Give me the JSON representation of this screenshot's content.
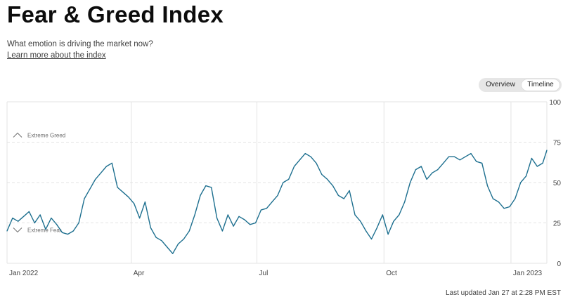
{
  "header": {
    "title": "Fear & Greed Index",
    "subtitle": "What emotion is driving the market now?",
    "learn_more": "Learn more about the index"
  },
  "view_toggle": {
    "options": [
      "Overview",
      "Timeline"
    ],
    "selected": "Timeline"
  },
  "footer": {
    "last_updated": "Last updated Jan 27 at 2:28 PM EST"
  },
  "colors": {
    "line": "#1d6f8f",
    "grid": "#e3e3e3",
    "axis_text": "#444444"
  },
  "chart_data": {
    "type": "line",
    "title": "",
    "xlabel": "",
    "ylabel": "",
    "ylim": [
      0,
      100
    ],
    "yticks": [
      0,
      25,
      50,
      75,
      100
    ],
    "x_tick_labels": [
      "Jan 2022",
      "Apr",
      "Jul",
      "Oct",
      "Jan 2023"
    ],
    "bands": [
      {
        "label": "Extreme Greed",
        "value": 75,
        "icon": "chevron-up-icon"
      },
      {
        "label": "Extreme Fear",
        "value": 25,
        "icon": "chevron-down-icon"
      }
    ],
    "grid": true,
    "legend": "none",
    "series": [
      {
        "x": [
          "2022-01-01",
          "2022-01-05",
          "2022-01-09",
          "2022-01-13",
          "2022-01-17",
          "2022-01-21",
          "2022-01-25",
          "2022-01-29",
          "2022-02-02",
          "2022-02-06",
          "2022-02-10",
          "2022-02-14",
          "2022-02-18",
          "2022-02-22",
          "2022-02-26",
          "2022-03-02",
          "2022-03-06",
          "2022-03-10",
          "2022-03-14",
          "2022-03-18",
          "2022-03-22",
          "2022-03-26",
          "2022-03-30",
          "2022-04-03",
          "2022-04-07",
          "2022-04-11",
          "2022-04-15",
          "2022-04-19",
          "2022-04-23",
          "2022-04-27",
          "2022-05-01",
          "2022-05-05",
          "2022-05-09",
          "2022-05-13",
          "2022-05-17",
          "2022-05-21",
          "2022-05-25",
          "2022-05-29",
          "2022-06-02",
          "2022-06-06",
          "2022-06-10",
          "2022-06-14",
          "2022-06-18",
          "2022-06-22",
          "2022-06-26",
          "2022-06-30",
          "2022-07-04",
          "2022-07-08",
          "2022-07-12",
          "2022-07-16",
          "2022-07-20",
          "2022-07-24",
          "2022-07-28",
          "2022-08-01",
          "2022-08-05",
          "2022-08-09",
          "2022-08-13",
          "2022-08-17",
          "2022-08-21",
          "2022-08-25",
          "2022-08-29",
          "2022-09-02",
          "2022-09-06",
          "2022-09-10",
          "2022-09-14",
          "2022-09-18",
          "2022-09-22",
          "2022-09-26",
          "2022-09-30",
          "2022-10-04",
          "2022-10-08",
          "2022-10-12",
          "2022-10-16",
          "2022-10-20",
          "2022-10-24",
          "2022-10-28",
          "2022-11-01",
          "2022-11-05",
          "2022-11-09",
          "2022-11-13",
          "2022-11-17",
          "2022-11-21",
          "2022-11-25",
          "2022-11-29",
          "2022-12-03",
          "2022-12-07",
          "2022-12-11",
          "2022-12-15",
          "2022-12-19",
          "2022-12-23",
          "2022-12-27",
          "2022-12-31",
          "2023-01-04",
          "2023-01-08",
          "2023-01-12",
          "2023-01-16",
          "2023-01-20",
          "2023-01-24",
          "2023-01-27"
        ],
        "y": [
          20,
          28,
          26,
          29,
          32,
          25,
          30,
          21,
          28,
          24,
          19,
          18,
          20,
          25,
          40,
          46,
          52,
          56,
          60,
          62,
          47,
          44,
          41,
          37,
          28,
          38,
          22,
          16,
          14,
          10,
          6,
          12,
          15,
          20,
          30,
          42,
          48,
          47,
          28,
          20,
          30,
          23,
          29,
          27,
          24,
          25,
          33,
          34,
          38,
          42,
          50,
          52,
          60,
          64,
          68,
          66,
          62,
          55,
          52,
          48,
          42,
          40,
          45,
          30,
          26,
          20,
          15,
          22,
          30,
          18,
          26,
          30,
          38,
          50,
          58,
          60,
          52,
          56,
          58,
          62,
          66,
          66,
          64,
          66,
          68,
          63,
          62,
          48,
          40,
          38,
          34,
          35,
          40,
          50,
          54,
          65,
          60,
          62,
          70
        ]
      }
    ]
  }
}
